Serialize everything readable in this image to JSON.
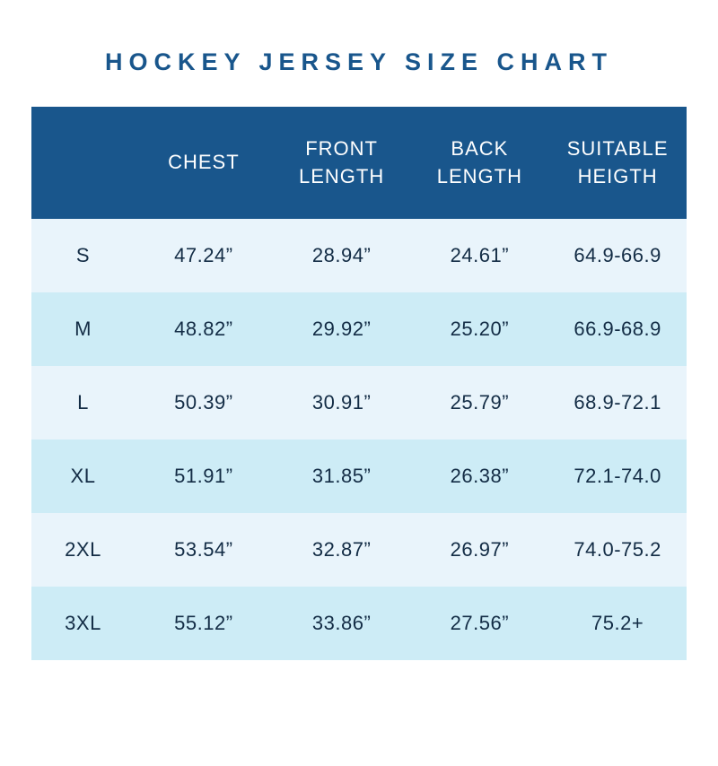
{
  "title": "HOCKEY JERSEY SIZE CHART",
  "colors": {
    "title_color": "#19568c",
    "header_bg": "#19568c",
    "row_light": "#e9f4fb",
    "row_alt": "#cdecf6",
    "text_dark": "#132c45"
  },
  "chart_data": {
    "type": "table",
    "title": "HOCKEY JERSEY SIZE CHART",
    "columns": [
      "",
      "CHEST",
      "FRONT LENGTH",
      "BACK LENGTH",
      "SUITABLE HEIGTH"
    ],
    "rows": [
      [
        "S",
        "47.24”",
        "28.94”",
        "24.61”",
        "64.9-66.9"
      ],
      [
        "M",
        "48.82”",
        "29.92”",
        "25.20”",
        "66.9-68.9"
      ],
      [
        "L",
        "50.39”",
        "30.91”",
        "25.79”",
        "68.9-72.1"
      ],
      [
        "XL",
        "51.91”",
        "31.85”",
        "26.38”",
        "72.1-74.0"
      ],
      [
        "2XL",
        "53.54”",
        "32.87”",
        "26.97”",
        "74.0-75.2"
      ],
      [
        "3XL",
        "55.12”",
        "33.86”",
        "27.56”",
        "75.2+"
      ]
    ]
  }
}
